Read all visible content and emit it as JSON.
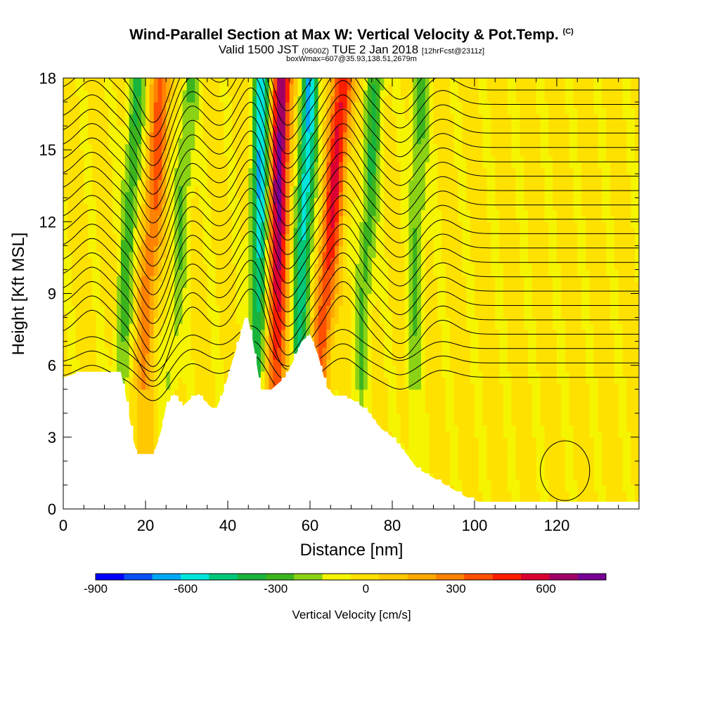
{
  "title": {
    "main": "Wind-Parallel Section at Max W: Vertical Velocity & Pot.Temp.",
    "main_tag": "(C)",
    "valid_prefix": "Valid 1500 JST",
    "valid_zulu": "(0600Z)",
    "valid_date": "TUE 2 Jan 2018",
    "forecast": "[12hrFcst@2311z]",
    "box_info": "boxWmax=607@35.93,138.51,2679m"
  },
  "chart_data": {
    "type": "heatmap",
    "xlabel": "Distance [nm]",
    "ylabel": "Height [Kft MSL]",
    "xlim": [
      0,
      140
    ],
    "ylim": [
      0,
      18
    ],
    "x_ticks": [
      0,
      20,
      40,
      60,
      80,
      100,
      120
    ],
    "y_ticks": [
      0,
      3,
      6,
      9,
      12,
      15,
      18
    ],
    "colorbar": {
      "label": "Vertical Velocity [cm/s]",
      "range": [
        -900,
        800
      ],
      "tick_values": [
        -900,
        -600,
        -300,
        0,
        300,
        600
      ],
      "tick_labels": [
        "-900",
        "-600",
        "-300",
        "0",
        "300",
        "600"
      ],
      "colors": [
        "#0000ff",
        "#0a4ff5",
        "#00a8f5",
        "#00e5dc",
        "#00c878",
        "#19b43c",
        "#3cb41e",
        "#8cd214",
        "#f5f500",
        "#ffe100",
        "#ffc800",
        "#ffaa00",
        "#ff8200",
        "#ff5000",
        "#ff1e00",
        "#dc0032",
        "#a00064",
        "#780096"
      ]
    },
    "terrain_profile": [
      [
        0,
        5.5
      ],
      [
        2,
        5.6
      ],
      [
        4,
        5.7
      ],
      [
        14,
        5.7
      ],
      [
        15,
        4.9
      ],
      [
        16,
        3.9
      ],
      [
        17,
        2.9
      ],
      [
        18,
        2.3
      ],
      [
        22,
        2.3
      ],
      [
        23,
        2.8
      ],
      [
        24,
        3.4
      ],
      [
        25,
        4.3
      ],
      [
        27,
        4.8
      ],
      [
        29,
        4.3
      ],
      [
        31,
        4.6
      ],
      [
        33,
        4.8
      ],
      [
        35,
        4.4
      ],
      [
        37,
        4.1
      ],
      [
        39,
        4.9
      ],
      [
        41,
        6.1
      ],
      [
        43,
        7.2
      ],
      [
        44,
        7.9
      ],
      [
        45,
        7.9
      ],
      [
        46,
        7.1
      ],
      [
        47,
        6.1
      ],
      [
        48,
        5.0
      ],
      [
        50,
        4.9
      ],
      [
        52,
        5.2
      ],
      [
        54,
        5.5
      ],
      [
        56,
        6.2
      ],
      [
        58,
        7.0
      ],
      [
        60,
        7.3
      ],
      [
        62,
        6.4
      ],
      [
        64,
        5.1
      ],
      [
        66,
        4.7
      ],
      [
        70,
        4.6
      ],
      [
        74,
        4.1
      ],
      [
        77,
        3.4
      ],
      [
        80,
        3.0
      ],
      [
        83,
        2.4
      ],
      [
        86,
        1.7
      ],
      [
        90,
        1.3
      ],
      [
        94,
        0.9
      ],
      [
        98,
        0.5
      ],
      [
        101,
        0.3
      ],
      [
        140,
        0.3
      ]
    ],
    "updrafts": [
      {
        "center_bottom": 19,
        "tilt": 5,
        "peak": 420
      },
      {
        "center_bottom": 51.5,
        "tilt": 1.5,
        "peak": 800
      },
      {
        "center_bottom": 62,
        "tilt": 6,
        "peak": 620
      }
    ],
    "downdrafts": [
      {
        "center_bottom": 14,
        "tilt": 4,
        "peak": -320
      },
      {
        "center_bottom": 26,
        "tilt": 5,
        "peak": -240
      },
      {
        "center_bottom": 47,
        "tilt": 1.5,
        "peak": -650
      },
      {
        "center_bottom": 57,
        "tilt": 3,
        "peak": -620
      },
      {
        "center_bottom": 72,
        "tilt": 4,
        "peak": -320
      },
      {
        "center_bottom": 85,
        "tilt": 2,
        "peak": -260
      }
    ],
    "isentropes": {
      "base_heights": [
        5.5,
        6.1,
        6.7,
        7.3,
        7.9,
        8.5,
        9.1,
        9.7,
        10.3,
        10.9,
        11.5,
        12.1,
        12.7,
        13.3,
        13.9,
        14.5,
        15.1,
        15.7,
        16.3,
        16.9,
        17.5,
        18.1
      ],
      "wave_crests": [
        {
          "x": 7,
          "amp": 1.0
        },
        {
          "x": 22,
          "amp": -2.0
        },
        {
          "x": 31,
          "amp": 1.2
        },
        {
          "x": 46,
          "amp": 2.0
        },
        {
          "x": 54,
          "amp": -1.6
        },
        {
          "x": 68,
          "amp": 1.6
        },
        {
          "x": 82,
          "amp": -1.0
        },
        {
          "x": 92,
          "amp": 0.6
        }
      ]
    }
  }
}
